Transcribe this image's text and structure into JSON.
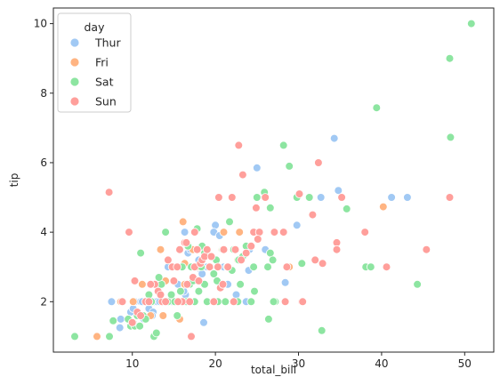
{
  "chart_data": {
    "type": "scatter",
    "xlabel": "total_bill",
    "ylabel": "tip",
    "xlim": [
      0.5,
      53.5
    ],
    "ylim": [
      0.55,
      10.45
    ],
    "xticks": [
      10,
      20,
      30,
      40,
      50
    ],
    "yticks": [
      2,
      4,
      6,
      8,
      10
    ],
    "grid": false,
    "legend": {
      "title": "day",
      "placement": "top-left"
    },
    "series": [
      {
        "name": "Thur",
        "color": "#a1c9f4",
        "points": [
          [
            7.5,
            2.0
          ],
          [
            8.6,
            1.5
          ],
          [
            8.5,
            1.25
          ],
          [
            9.8,
            1.7
          ],
          [
            10.1,
            1.8
          ],
          [
            10.3,
            2.0
          ],
          [
            10.7,
            1.6
          ],
          [
            11.0,
            2.0
          ],
          [
            11.4,
            1.5
          ],
          [
            11.5,
            2.0
          ],
          [
            12.0,
            1.8
          ],
          [
            12.2,
            2.0
          ],
          [
            12.5,
            1.7
          ],
          [
            12.7,
            2.0
          ],
          [
            13.0,
            2.0
          ],
          [
            13.3,
            2.0
          ],
          [
            13.5,
            2.6
          ],
          [
            14.0,
            2.0
          ],
          [
            14.5,
            3.0
          ],
          [
            15.0,
            2.0
          ],
          [
            15.5,
            2.5
          ],
          [
            16.0,
            3.0
          ],
          [
            16.4,
            2.2
          ],
          [
            16.7,
            3.4
          ],
          [
            17.0,
            3.5
          ],
          [
            17.5,
            3.0
          ],
          [
            18.0,
            3.2
          ],
          [
            18.3,
            2.9
          ],
          [
            18.6,
            1.4
          ],
          [
            19.0,
            3.0
          ],
          [
            19.4,
            3.0
          ],
          [
            20.0,
            4.2
          ],
          [
            20.3,
            3.0
          ],
          [
            21.0,
            3.0
          ],
          [
            22.5,
            2.2
          ],
          [
            24.0,
            2.9
          ],
          [
            25.0,
            5.85
          ],
          [
            26.0,
            3.5
          ],
          [
            28.4,
            2.55
          ],
          [
            29.8,
            4.2
          ],
          [
            32.7,
            5.0
          ],
          [
            34.3,
            6.7
          ],
          [
            34.8,
            5.2
          ],
          [
            41.2,
            5.0
          ],
          [
            43.1,
            5.0
          ],
          [
            16.3,
            4.0
          ],
          [
            19.8,
            4.0
          ],
          [
            17.8,
            3.5
          ],
          [
            14.8,
            2.0
          ],
          [
            12.4,
            1.6
          ],
          [
            9.6,
            1.5
          ],
          [
            24.1,
            3.5
          ],
          [
            16.2,
            2.3
          ],
          [
            21.5,
            2.5
          ],
          [
            13.0,
            2.5
          ],
          [
            23.7,
            2.0
          ],
          [
            14.3,
            3.0
          ],
          [
            17.9,
            3.0
          ],
          [
            11.2,
            2.0
          ],
          [
            15.9,
            2.0
          ],
          [
            18.4,
            2.8
          ],
          [
            20.5,
            3.9
          ]
        ]
      },
      {
        "name": "Fri",
        "color": "#ffb482",
        "points": [
          [
            5.75,
            1.0
          ],
          [
            8.6,
            2.0
          ],
          [
            10.1,
            2.0
          ],
          [
            11.2,
            2.5
          ],
          [
            12.0,
            2.0
          ],
          [
            12.4,
            2.5
          ],
          [
            13.4,
            3.5
          ],
          [
            13.7,
            1.6
          ],
          [
            15.4,
            3.0
          ],
          [
            15.7,
            1.5
          ],
          [
            16.1,
            4.3
          ],
          [
            16.3,
            3.1
          ],
          [
            17.3,
            3.5
          ],
          [
            17.8,
            3.0
          ],
          [
            18.3,
            3.5
          ],
          [
            20.8,
            3.5
          ],
          [
            22.7,
            3.2
          ],
          [
            22.9,
            4.0
          ],
          [
            28.9,
            3.0
          ],
          [
            40.2,
            4.73
          ],
          [
            21.0,
            4.0
          ],
          [
            12.2,
            1.6
          ],
          [
            16.3,
            2.5
          ],
          [
            13.4,
            2.2
          ],
          [
            14.0,
            2.6
          ]
        ]
      },
      {
        "name": "Sat",
        "color": "#8de5a1",
        "points": [
          [
            3.07,
            1.0
          ],
          [
            7.25,
            1.0
          ],
          [
            7.7,
            1.45
          ],
          [
            9.5,
            1.5
          ],
          [
            9.8,
            1.3
          ],
          [
            10.1,
            1.4
          ],
          [
            10.3,
            1.3
          ],
          [
            10.6,
            1.6
          ],
          [
            11.0,
            3.4
          ],
          [
            11.3,
            1.6
          ],
          [
            11.6,
            1.5
          ],
          [
            12.3,
            2.0
          ],
          [
            12.6,
            1.0
          ],
          [
            12.9,
            1.1
          ],
          [
            13.0,
            2.5
          ],
          [
            13.5,
            2.5
          ],
          [
            14.0,
            4.0
          ],
          [
            14.3,
            2.0
          ],
          [
            14.7,
            2.2
          ],
          [
            15.0,
            3.0
          ],
          [
            15.4,
            1.6
          ],
          [
            15.8,
            2.3
          ],
          [
            16.0,
            3.0
          ],
          [
            16.5,
            2.0
          ],
          [
            17.1,
            3.0
          ],
          [
            17.5,
            2.0
          ],
          [
            17.8,
            4.1
          ],
          [
            18.0,
            2.3
          ],
          [
            18.3,
            3.0
          ],
          [
            18.7,
            2.5
          ],
          [
            19.0,
            2.0
          ],
          [
            19.4,
            3.0
          ],
          [
            19.8,
            2.0
          ],
          [
            20.1,
            3.2
          ],
          [
            20.3,
            2.0
          ],
          [
            20.6,
            2.4
          ],
          [
            20.9,
            3.5
          ],
          [
            21.2,
            2.0
          ],
          [
            21.7,
            4.3
          ],
          [
            22.0,
            2.9
          ],
          [
            22.2,
            3.5
          ],
          [
            22.7,
            2.0
          ],
          [
            23.3,
            3.3
          ],
          [
            23.7,
            3.6
          ],
          [
            24.3,
            2.0
          ],
          [
            24.6,
            3.0
          ],
          [
            25.0,
            5.0
          ],
          [
            25.3,
            4.0
          ],
          [
            25.9,
            5.15
          ],
          [
            26.4,
            1.5
          ],
          [
            26.6,
            3.4
          ],
          [
            26.9,
            3.2
          ],
          [
            27.2,
            2.0
          ],
          [
            28.2,
            6.5
          ],
          [
            28.9,
            5.9
          ],
          [
            29.8,
            5.0
          ],
          [
            30.4,
            3.1
          ],
          [
            31.3,
            5.0
          ],
          [
            32.8,
            1.17
          ],
          [
            35.8,
            4.67
          ],
          [
            38.1,
            3.0
          ],
          [
            38.7,
            3.0
          ],
          [
            39.4,
            7.58
          ],
          [
            44.3,
            2.5
          ],
          [
            48.2,
            9.0
          ],
          [
            48.3,
            6.73
          ],
          [
            50.8,
            10.0
          ],
          [
            16.9,
            2.5
          ],
          [
            13.2,
            2.7
          ],
          [
            22.8,
            3.2
          ],
          [
            18.4,
            3.6
          ],
          [
            12.0,
            2.2
          ],
          [
            14.9,
            3.0
          ],
          [
            17.3,
            2.6
          ],
          [
            24.7,
            2.3
          ],
          [
            20.2,
            2.6
          ],
          [
            15.1,
            2.0
          ],
          [
            19.8,
            2.8
          ],
          [
            10.9,
            1.3
          ],
          [
            21.4,
            3.0
          ],
          [
            16.7,
            3.6
          ],
          [
            23.0,
            2.5
          ],
          [
            18.7,
            3.4
          ],
          [
            27.0,
            2.0
          ],
          [
            26.3,
            3.0
          ],
          [
            11.8,
            2.0
          ],
          [
            13.9,
            2.0
          ],
          [
            26.6,
            4.7
          ]
        ]
      },
      {
        "name": "Sun",
        "color": "#ff9f9b",
        "points": [
          [
            7.2,
            5.15
          ],
          [
            8.8,
            2.0
          ],
          [
            9.6,
            4.0
          ],
          [
            10.0,
            1.4
          ],
          [
            10.3,
            2.6
          ],
          [
            10.6,
            1.7
          ],
          [
            11.0,
            1.6
          ],
          [
            11.6,
            2.0
          ],
          [
            12.0,
            2.0
          ],
          [
            12.7,
            2.5
          ],
          [
            13.1,
            2.3
          ],
          [
            13.6,
            2.0
          ],
          [
            14.0,
            2.0
          ],
          [
            14.3,
            3.2
          ],
          [
            14.8,
            3.0
          ],
          [
            15.0,
            2.6
          ],
          [
            15.4,
            3.0
          ],
          [
            15.7,
            3.5
          ],
          [
            16.0,
            2.0
          ],
          [
            16.3,
            3.7
          ],
          [
            16.6,
            2.5
          ],
          [
            16.9,
            2.0
          ],
          [
            17.1,
            1.0
          ],
          [
            17.3,
            2.7
          ],
          [
            17.5,
            3.0
          ],
          [
            17.8,
            3.5
          ],
          [
            18.0,
            2.6
          ],
          [
            18.2,
            3.1
          ],
          [
            18.4,
            3.2
          ],
          [
            18.7,
            3.3
          ],
          [
            19.0,
            3.5
          ],
          [
            19.3,
            3.0
          ],
          [
            19.8,
            2.0
          ],
          [
            20.3,
            3.0
          ],
          [
            20.4,
            5.0
          ],
          [
            20.6,
            2.4
          ],
          [
            20.9,
            2.5
          ],
          [
            21.0,
            3.5
          ],
          [
            21.5,
            3.0
          ],
          [
            22.0,
            5.0
          ],
          [
            22.4,
            3.5
          ],
          [
            22.8,
            6.5
          ],
          [
            23.1,
            3.2
          ],
          [
            23.7,
            3.4
          ],
          [
            24.3,
            3.6
          ],
          [
            24.6,
            4.0
          ],
          [
            24.9,
            4.7
          ],
          [
            25.3,
            4.0
          ],
          [
            26.0,
            5.0
          ],
          [
            28.4,
            2.0
          ],
          [
            28.6,
            3.0
          ],
          [
            30.1,
            5.1
          ],
          [
            30.4,
            2.0
          ],
          [
            31.7,
            4.5
          ],
          [
            32.4,
            6.0
          ],
          [
            32.9,
            3.1
          ],
          [
            34.6,
            3.7
          ],
          [
            35.2,
            5.0
          ],
          [
            38.0,
            4.0
          ],
          [
            40.6,
            3.0
          ],
          [
            45.4,
            3.5
          ],
          [
            48.2,
            5.0
          ],
          [
            34.6,
            3.5
          ],
          [
            30.5,
            2.0
          ],
          [
            32.0,
            3.2
          ],
          [
            28.2,
            4.0
          ],
          [
            23.3,
            5.65
          ],
          [
            17.5,
            4.0
          ],
          [
            16.5,
            3.7
          ],
          [
            15.5,
            2.0
          ],
          [
            12.2,
            2.5
          ],
          [
            13.4,
            2.2
          ],
          [
            19.5,
            3.3
          ],
          [
            22.2,
            2.0
          ],
          [
            25.1,
            3.8
          ],
          [
            27.1,
            4.0
          ]
        ]
      }
    ]
  }
}
